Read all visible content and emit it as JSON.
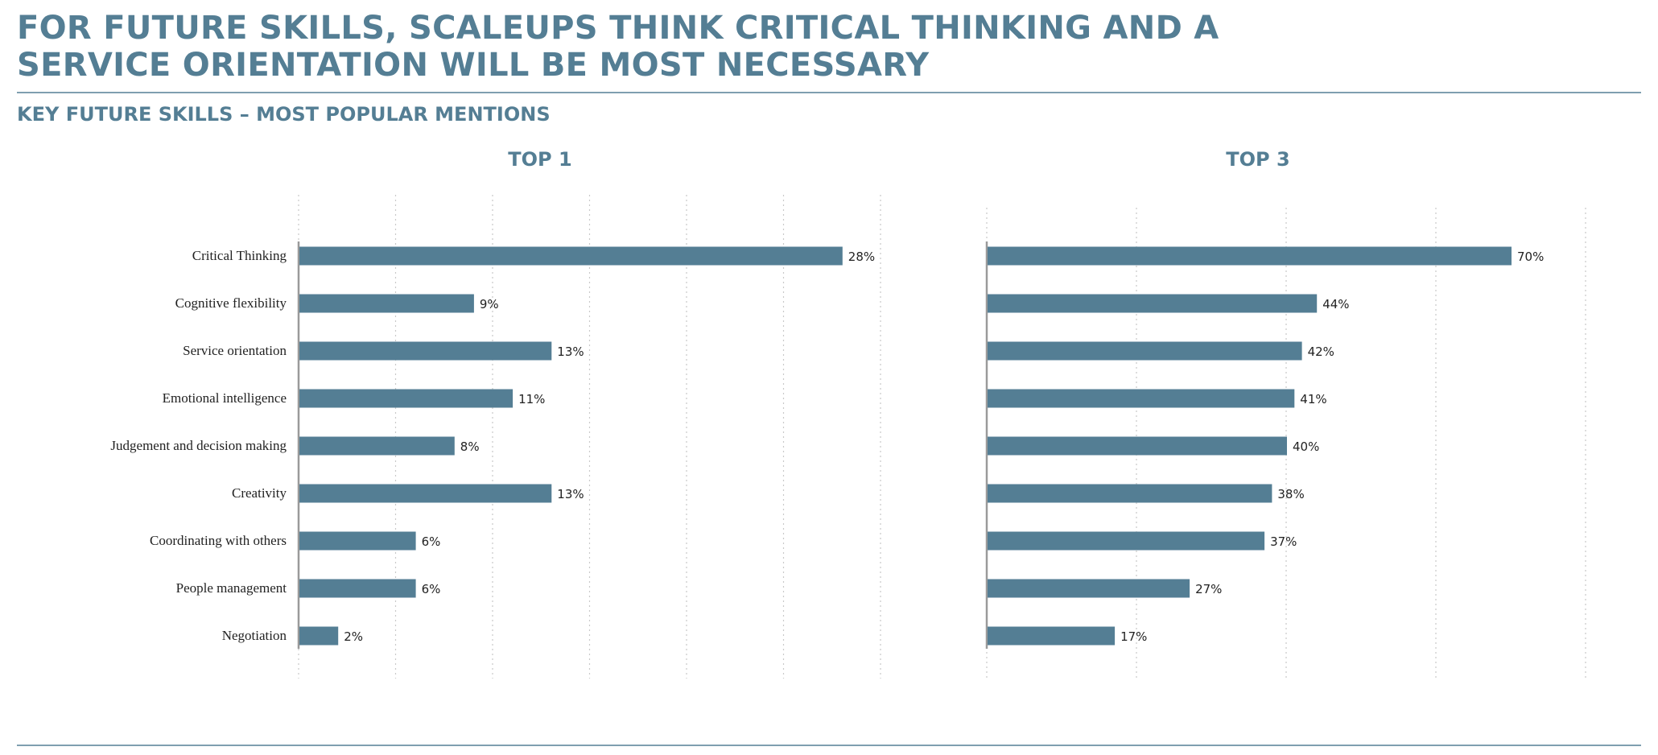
{
  "title": "FOR FUTURE SKILLS, SCALEUPS THINK CRITICAL THINKING AND A SERVICE ORIENTATION WILL BE MOST NECESSARY",
  "subtitle": "KEY FUTURE SKILLS – MOST POPULAR MENTIONS",
  "colors": {
    "bar": "#547e94",
    "heading": "#547e94",
    "axis": "#9a9a9a",
    "grid": "#c9c9c9"
  },
  "chart_data": [
    {
      "type": "bar",
      "orientation": "horizontal",
      "title": "TOP 1",
      "categories": [
        "Critical Thinking",
        "Cognitive flexibility",
        "Service orientation",
        "Emotional intelligence",
        "Judgement and decision making",
        "Creativity",
        "Coordinating with others",
        "People management",
        "Negotiation"
      ],
      "values": [
        28,
        9,
        13,
        11,
        8,
        13,
        6,
        6,
        2
      ],
      "value_labels": [
        "28%",
        "9%",
        "13%",
        "11%",
        "8%",
        "13%",
        "6%",
        "6%",
        "2%"
      ],
      "xlim": [
        0,
        30
      ],
      "grid": true,
      "grid_step": 5
    },
    {
      "type": "bar",
      "orientation": "horizontal",
      "title": "TOP 3",
      "categories": [
        "Critical Thinking",
        "Cognitive flexibility",
        "Service orientation",
        "Emotional intelligence",
        "Judgement and decision making",
        "Creativity",
        "Coordinating with others",
        "People management",
        "Negotiation"
      ],
      "values": [
        70,
        44,
        42,
        41,
        40,
        38,
        37,
        27,
        17
      ],
      "value_labels": [
        "70%",
        "44%",
        "42%",
        "41%",
        "40%",
        "38%",
        "37%",
        "27%",
        "17%"
      ],
      "xlim": [
        0,
        80
      ],
      "grid": true,
      "grid_step": 20
    }
  ]
}
